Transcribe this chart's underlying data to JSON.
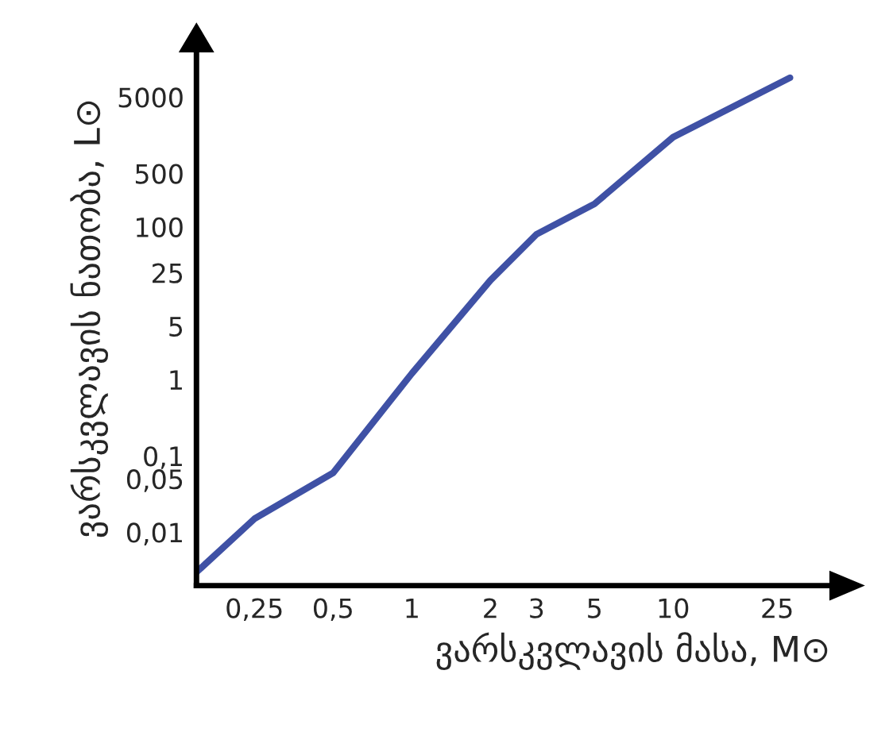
{
  "chart_data": {
    "type": "line",
    "xlabel": "ვარსკვლავის მასა, M⊙",
    "ylabel": "ვარსკვლავის ნათობა, L⊙",
    "log": "xy",
    "series": [
      {
        "color": "#3f51a5",
        "x": [
          0.15,
          0.25,
          0.5,
          1,
          2,
          3,
          5,
          10,
          28
        ],
        "values": [
          0.003,
          0.015,
          0.06,
          1.2,
          20,
          80,
          200,
          1500,
          9000
        ]
      }
    ],
    "xlim": [
      0.15,
      40
    ],
    "ylim": [
      0.002,
      20000
    ],
    "xticks": [
      {
        "value": 0.25,
        "label": "0,25"
      },
      {
        "value": 0.5,
        "label": "0,5"
      },
      1,
      2,
      3,
      5,
      10,
      25
    ],
    "yticks": [
      {
        "value": 0.01,
        "label": "0,01"
      },
      {
        "value": 0.05,
        "label": "0,05"
      },
      {
        "value": 0.1,
        "label": "0,1"
      },
      1,
      5,
      25,
      100,
      500,
      5000
    ],
    "grid": false,
    "marker": "none",
    "line_style": "solid"
  }
}
